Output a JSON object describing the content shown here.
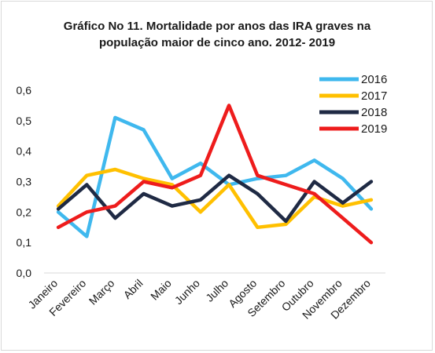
{
  "chart_data": {
    "type": "line",
    "title": "Gráfico No 11. Mortalidade por anos  das IRA graves na",
    "subtitle": "população maior de cinco ano. 2012- 2019",
    "xlabel": "",
    "ylabel": "",
    "categories": [
      "Janeiro",
      "Fevereiro",
      "Março",
      "Abril",
      "Maio",
      "Junho",
      "Julho",
      "Agosto",
      "Setembro",
      "Outubro",
      "Novembro",
      "Dezembro"
    ],
    "yticks": [
      "0,0",
      "0,1",
      "0,2",
      "0,3",
      "0,4",
      "0,5",
      "0,6"
    ],
    "ylim": [
      0,
      0.6
    ],
    "grid": false,
    "legend_position": "top-right",
    "series": [
      {
        "name": "2016",
        "color": "#3FB8EE",
        "values": [
          0.2,
          0.12,
          0.51,
          0.47,
          0.31,
          0.36,
          0.29,
          0.31,
          0.32,
          0.37,
          0.31,
          0.21
        ]
      },
      {
        "name": "2017",
        "color": "#FFC000",
        "values": [
          0.22,
          0.32,
          0.34,
          0.31,
          0.29,
          0.2,
          0.29,
          0.15,
          0.16,
          0.25,
          0.22,
          0.24
        ]
      },
      {
        "name": "2018",
        "color": "#1F2A44",
        "values": [
          0.21,
          0.29,
          0.18,
          0.26,
          0.22,
          0.24,
          0.32,
          0.26,
          0.17,
          0.3,
          0.23,
          0.3
        ]
      },
      {
        "name": "2019",
        "color": "#EE1C1C",
        "values": [
          0.15,
          0.2,
          0.22,
          0.3,
          0.28,
          0.32,
          0.55,
          0.32,
          0.29,
          0.26,
          0.18,
          0.1
        ]
      }
    ]
  }
}
